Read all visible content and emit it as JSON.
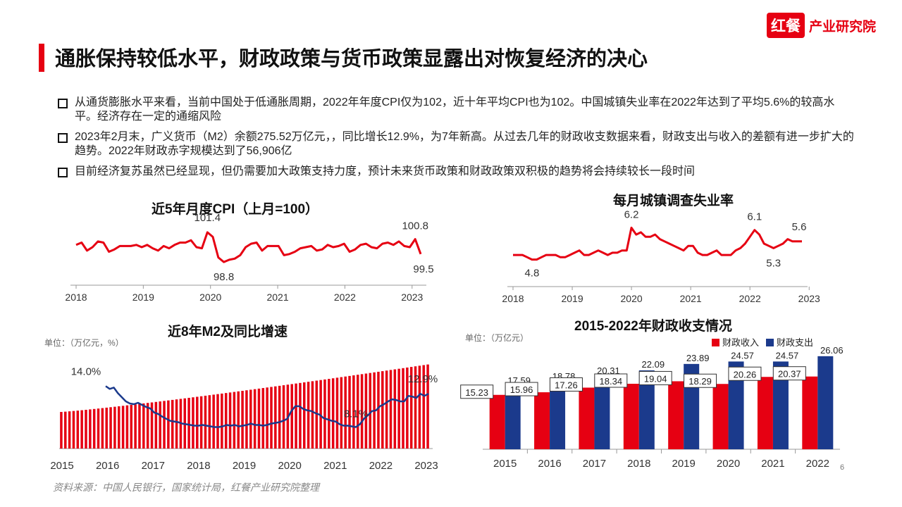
{
  "header": {
    "title": "通胀保持较低水平，财政政策与货币政策显露出对恢复经济的决心",
    "logo_mark": "红餐",
    "logo_text": "产业研究院"
  },
  "bullets": [
    "从通货膨胀水平来看，当前中国处于低通胀周期，2022年年度CPI仅为102，近十年平均CPI也为102。中国城镇失业率在2022年达到了平均5.6%的较高水平。经济存在一定的通缩风险",
    "2023年2月末，广义货币（M2）余额275.52万亿元，，同比增长12.9%，为7年新高。从过去几年的财政收支数据来看，财政支出与收入的差额有进一步扩大的趋势。2022年财政赤字规模达到了56,906亿",
    "目前经济复苏虽然已经显现，但仍需要加大政策支持力度，预计未来货币政策和财政政策双积极的趋势将会持续较长一段时间"
  ],
  "source": "资料来源：中国人民银行，国家统计局，红餐产业研究院整理",
  "page_number": "6",
  "colors": {
    "accent": "#e60012",
    "navy": "#1b3a8c"
  },
  "chart_data": [
    {
      "type": "line",
      "title": "近5年月度CPI（上月=100）",
      "x_ticks": [
        "2018",
        "2019",
        "2020",
        "2021",
        "2022",
        "2023"
      ],
      "ylim": [
        98.5,
        101.7
      ],
      "series": [
        {
          "values": [
            100.3,
            100.5,
            99.8,
            100.1,
            100.6,
            100.5,
            99.7,
            99.9,
            100.2,
            100.2,
            100.2,
            100.3,
            100.1,
            100.3,
            100.0,
            99.8,
            100.2,
            100.0,
            100.3,
            100.5,
            100.5,
            100.7,
            100.1,
            100.0,
            101.4,
            101.0,
            99.2,
            98.8,
            99.0,
            99.1,
            99.4,
            100.1,
            100.4,
            100.5,
            99.8,
            100.2,
            100.2,
            100.2,
            99.4,
            99.5,
            99.7,
            100.0,
            100.1,
            100.2,
            99.8,
            99.9,
            100.3,
            100.1,
            100.2,
            100.4,
            99.7,
            99.9,
            100.3,
            100.4,
            100.1,
            100.0,
            100.4,
            100.5,
            100.3,
            100.6,
            100.2,
            100.1,
            100.8,
            99.5
          ],
          "data_labels": [
            {
              "i": 24,
              "text": "101.4"
            },
            {
              "i": 27,
              "text": "98.8"
            },
            {
              "i": 62,
              "text": "100.8"
            },
            {
              "i": 63,
              "text": "99.5"
            }
          ]
        }
      ]
    },
    {
      "type": "line",
      "title": "每月城镇调查失业率",
      "x_ticks": [
        "2018",
        "2019",
        "2020",
        "2021",
        "2022",
        "2023"
      ],
      "ylim": [
        4.6,
        6.4
      ],
      "series": [
        {
          "values": [
            5.0,
            5.0,
            5.0,
            4.9,
            4.8,
            4.8,
            4.9,
            5.0,
            5.0,
            5.0,
            4.9,
            4.9,
            5.0,
            5.1,
            5.2,
            5.0,
            5.0,
            5.1,
            5.2,
            5.1,
            5.0,
            5.1,
            5.1,
            5.2,
            5.2,
            6.2,
            5.9,
            6.0,
            5.8,
            5.8,
            5.9,
            5.7,
            5.6,
            5.5,
            5.4,
            5.3,
            5.2,
            5.4,
            5.4,
            5.1,
            5.0,
            5.0,
            5.1,
            5.2,
            5.0,
            5.0,
            5.0,
            5.2,
            5.3,
            5.5,
            5.8,
            6.1,
            5.9,
            5.5,
            5.4,
            5.3,
            5.4,
            5.5,
            5.7,
            5.6,
            5.6,
            5.6
          ],
          "data_labels": [
            {
              "i": 25,
              "text": "6.2"
            },
            {
              "i": 4,
              "text": "4.8"
            },
            {
              "i": 51,
              "text": "6.1"
            },
            {
              "i": 55,
              "text": "5.3"
            },
            {
              "i": 61,
              "text": "5.6"
            }
          ]
        }
      ]
    },
    {
      "type": "bar",
      "title": "近8年M2及同比增速",
      "unit": "单位：（万亿元，%）",
      "x_ticks": [
        "2015",
        "2016",
        "2017",
        "2018",
        "2019",
        "2020",
        "2021",
        "2022",
        "2023"
      ],
      "bars": {
        "start": 120,
        "end": 275.52,
        "count": 90,
        "ylim": [
          0,
          300
        ]
      },
      "line": {
        "ylim": [
          5,
          18
        ],
        "values": [
          14.0,
          13.6,
          13.8,
          13.0,
          12.4,
          11.8,
          11.5,
          11.4,
          11.6,
          11.3,
          11.0,
          10.8,
          10.2,
          10.0,
          9.6,
          9.3,
          9.0,
          8.9,
          8.8,
          8.6,
          8.5,
          8.4,
          8.3,
          8.3,
          8.4,
          8.3,
          8.2,
          8.1,
          8.1,
          8.2,
          8.4,
          8.3,
          8.4,
          8.2,
          8.3,
          8.4,
          8.6,
          8.4,
          8.4,
          8.3,
          8.4,
          8.6,
          8.7,
          8.8,
          9.0,
          9.3,
          10.4,
          11.1,
          11.1,
          10.7,
          10.5,
          10.4,
          10.1,
          9.9,
          9.4,
          9.2,
          9.0,
          8.9,
          8.5,
          8.3,
          8.3,
          8.2,
          8.1,
          8.5,
          9.3,
          9.8,
          10.4,
          10.5,
          11.1,
          11.4,
          11.8,
          12.1,
          12.0,
          11.8,
          11.8,
          12.6,
          12.5,
          12.3,
          12.9,
          12.6,
          12.9
        ],
        "data_labels": [
          {
            "i": 0,
            "text": "14.0%"
          },
          {
            "i": 62,
            "text": "8.1%"
          },
          {
            "i": 80,
            "text": "12.9%"
          }
        ]
      }
    },
    {
      "type": "bar",
      "title": "2015-2022年财政收支情况",
      "unit": "单位：（万亿元）",
      "categories": [
        "2015",
        "2016",
        "2017",
        "2018",
        "2019",
        "2020",
        "2021",
        "2022"
      ],
      "ylim": [
        0,
        28
      ],
      "series": [
        {
          "name": "财政收入",
          "color": "#e60012",
          "values": [
            15.23,
            15.96,
            17.26,
            18.34,
            19.04,
            18.29,
            20.26,
            20.37
          ],
          "labels": [
            "15.23",
            "15.96",
            "17.26",
            "18.34",
            "19.04",
            "18.29",
            "20.26",
            "20.37"
          ]
        },
        {
          "name": "财政支出",
          "color": "#1b3a8c",
          "values": [
            17.59,
            18.78,
            20.31,
            22.09,
            23.89,
            24.57,
            24.57,
            26.06
          ],
          "labels": [
            "17.59",
            "18.78",
            "20.31",
            "22.09",
            "23.89",
            "24.57",
            "24.57",
            "26.06"
          ]
        }
      ]
    }
  ]
}
